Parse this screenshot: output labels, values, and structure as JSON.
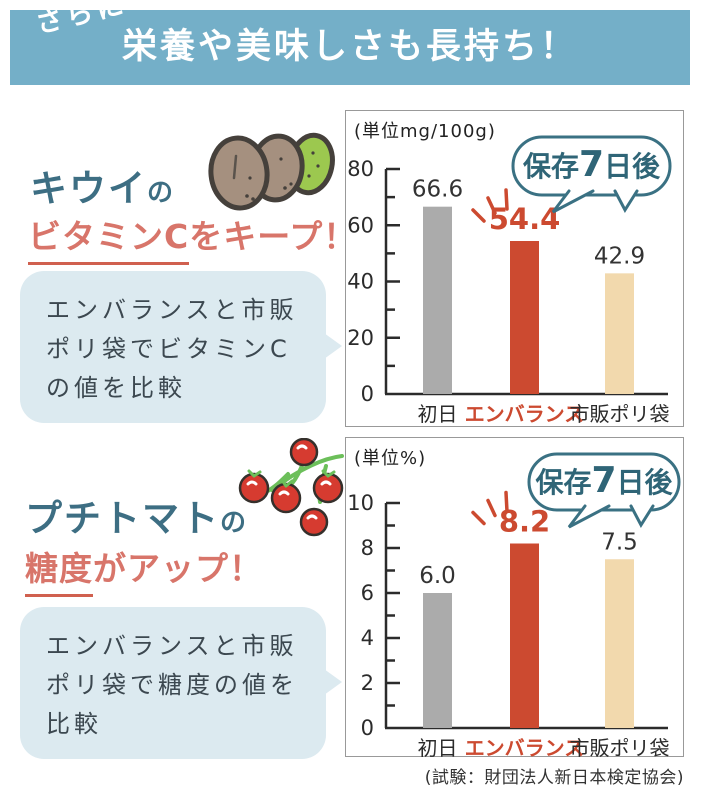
{
  "header": {
    "ribbon": "さらに",
    "title": "栄養や美味しさも長持ち！"
  },
  "sections": [
    {
      "icon": "kiwi-illustration",
      "title_main": "キウイ",
      "title_particle": "の",
      "subtitle_em": "ビタミンC",
      "subtitle_rest": "をキープ！",
      "note_line1": "エンバランスと市販",
      "note_line2": "ポリ袋でビタミンC",
      "note_line3": "の値を比較"
    },
    {
      "icon": "tomato-illustration",
      "title_main": "プチトマト",
      "title_particle": "の",
      "subtitle_em": "糖度",
      "subtitle_rest": "がアップ！",
      "note_line1": "エンバランスと市販",
      "note_line2": "ポリ袋で糖度の値を",
      "note_line3": "比較"
    }
  ],
  "chart_data": [
    {
      "type": "bar",
      "unit_label": "(単位mg/100g)",
      "categories": [
        "初日",
        "エンバランス",
        "市販ポリ袋"
      ],
      "values": [
        66.6,
        54.4,
        42.9
      ],
      "value_labels": [
        "66.6",
        "54.4",
        "42.9"
      ],
      "bar_colors": [
        "#ababab",
        "#cc4a30",
        "#f2d9ad"
      ],
      "emphasis_index": 1,
      "bubble_prefix": "保存",
      "bubble_number": "7",
      "bubble_suffix": "日後",
      "ylim": [
        0,
        80
      ],
      "major_tick": 20,
      "minor_tick": 10,
      "grid": false,
      "legend": "none"
    },
    {
      "type": "bar",
      "unit_label": "(単位%)",
      "categories": [
        "初日",
        "エンバランス",
        "市販ポリ袋"
      ],
      "values": [
        6.0,
        8.2,
        7.5
      ],
      "value_labels": [
        "6.0",
        "8.2",
        "7.5"
      ],
      "bar_colors": [
        "#ababab",
        "#cc4a30",
        "#f2d9ad"
      ],
      "emphasis_index": 1,
      "bubble_prefix": "保存",
      "bubble_number": "7",
      "bubble_suffix": "日後",
      "ylim": [
        0,
        10
      ],
      "major_tick": 2,
      "minor_tick": 1,
      "grid": false,
      "legend": "none"
    }
  ],
  "footer": {
    "source": "(試験：財団法人新日本検定協会)"
  },
  "colors": {
    "banner_bg": "#74afc8",
    "heading_teal": "#3d6e83",
    "heading_red": "#d8756a",
    "bar_gray": "#ababab",
    "bar_red": "#cc4a30",
    "bar_beige": "#f2d9ad",
    "note_bg": "#dceaf0",
    "bubble_border": "#3a7183",
    "bubble_text": "#2f6577",
    "axis_dark": "#2b2b2b"
  }
}
